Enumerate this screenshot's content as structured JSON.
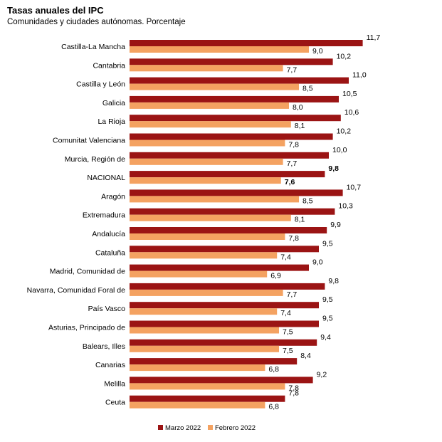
{
  "colors": {
    "series_0": "#9b1414",
    "series_1": "#f4a261"
  },
  "chart_data": {
    "type": "bar",
    "orientation": "horizontal",
    "title": "Tasas anuales del IPC",
    "subtitle": "Comunidades y ciudades autónomas. Porcentaje",
    "xlim": [
      0,
      12
    ],
    "grid": false,
    "legend_position": "bottom",
    "highlight_category": "NACIONAL",
    "categories": [
      "Castilla-La Mancha",
      "Cantabria",
      "Castilla y León",
      "Galicia",
      "La Rioja",
      "Comunitat Valenciana",
      "Murcia, Región de",
      "NACIONAL",
      "Aragón",
      "Extremadura",
      "Andalucía",
      "Cataluña",
      "Madrid, Comunidad de",
      "Navarra, Comunidad Foral de",
      "País Vasco",
      "Asturias, Principado de",
      "Balears, Illes",
      "Canarias",
      "Melilla",
      "Ceuta"
    ],
    "series": [
      {
        "name": "Marzo 2022",
        "values": [
          11.7,
          10.2,
          11.0,
          10.5,
          10.6,
          10.2,
          10.0,
          9.8,
          10.7,
          10.3,
          9.9,
          9.5,
          9.0,
          9.8,
          9.5,
          9.5,
          9.4,
          8.4,
          9.2,
          7.8
        ],
        "labels": [
          "11,7",
          "10,2",
          "11,0",
          "10,5",
          "10,6",
          "10,2",
          "10,0",
          "9,8",
          "10,7",
          "10,3",
          "9,9",
          "9,5",
          "9,0",
          "9,8",
          "9,5",
          "9,5",
          "9,4",
          "8,4",
          "9,2",
          "7,8"
        ]
      },
      {
        "name": "Febrero 2022",
        "values": [
          9.0,
          7.7,
          8.5,
          8.0,
          8.1,
          7.8,
          7.7,
          7.6,
          8.5,
          8.1,
          7.8,
          7.4,
          6.9,
          7.7,
          7.4,
          7.5,
          7.5,
          6.8,
          7.8,
          6.8
        ],
        "labels": [
          "9,0",
          "7,7",
          "8,5",
          "8,0",
          "8,1",
          "7,8",
          "7,7",
          "7,6",
          "8,5",
          "8,1",
          "7,8",
          "7,4",
          "6,9",
          "7,7",
          "7,4",
          "7,5",
          "7,5",
          "6,8",
          "7,8",
          "6,8"
        ]
      }
    ]
  }
}
